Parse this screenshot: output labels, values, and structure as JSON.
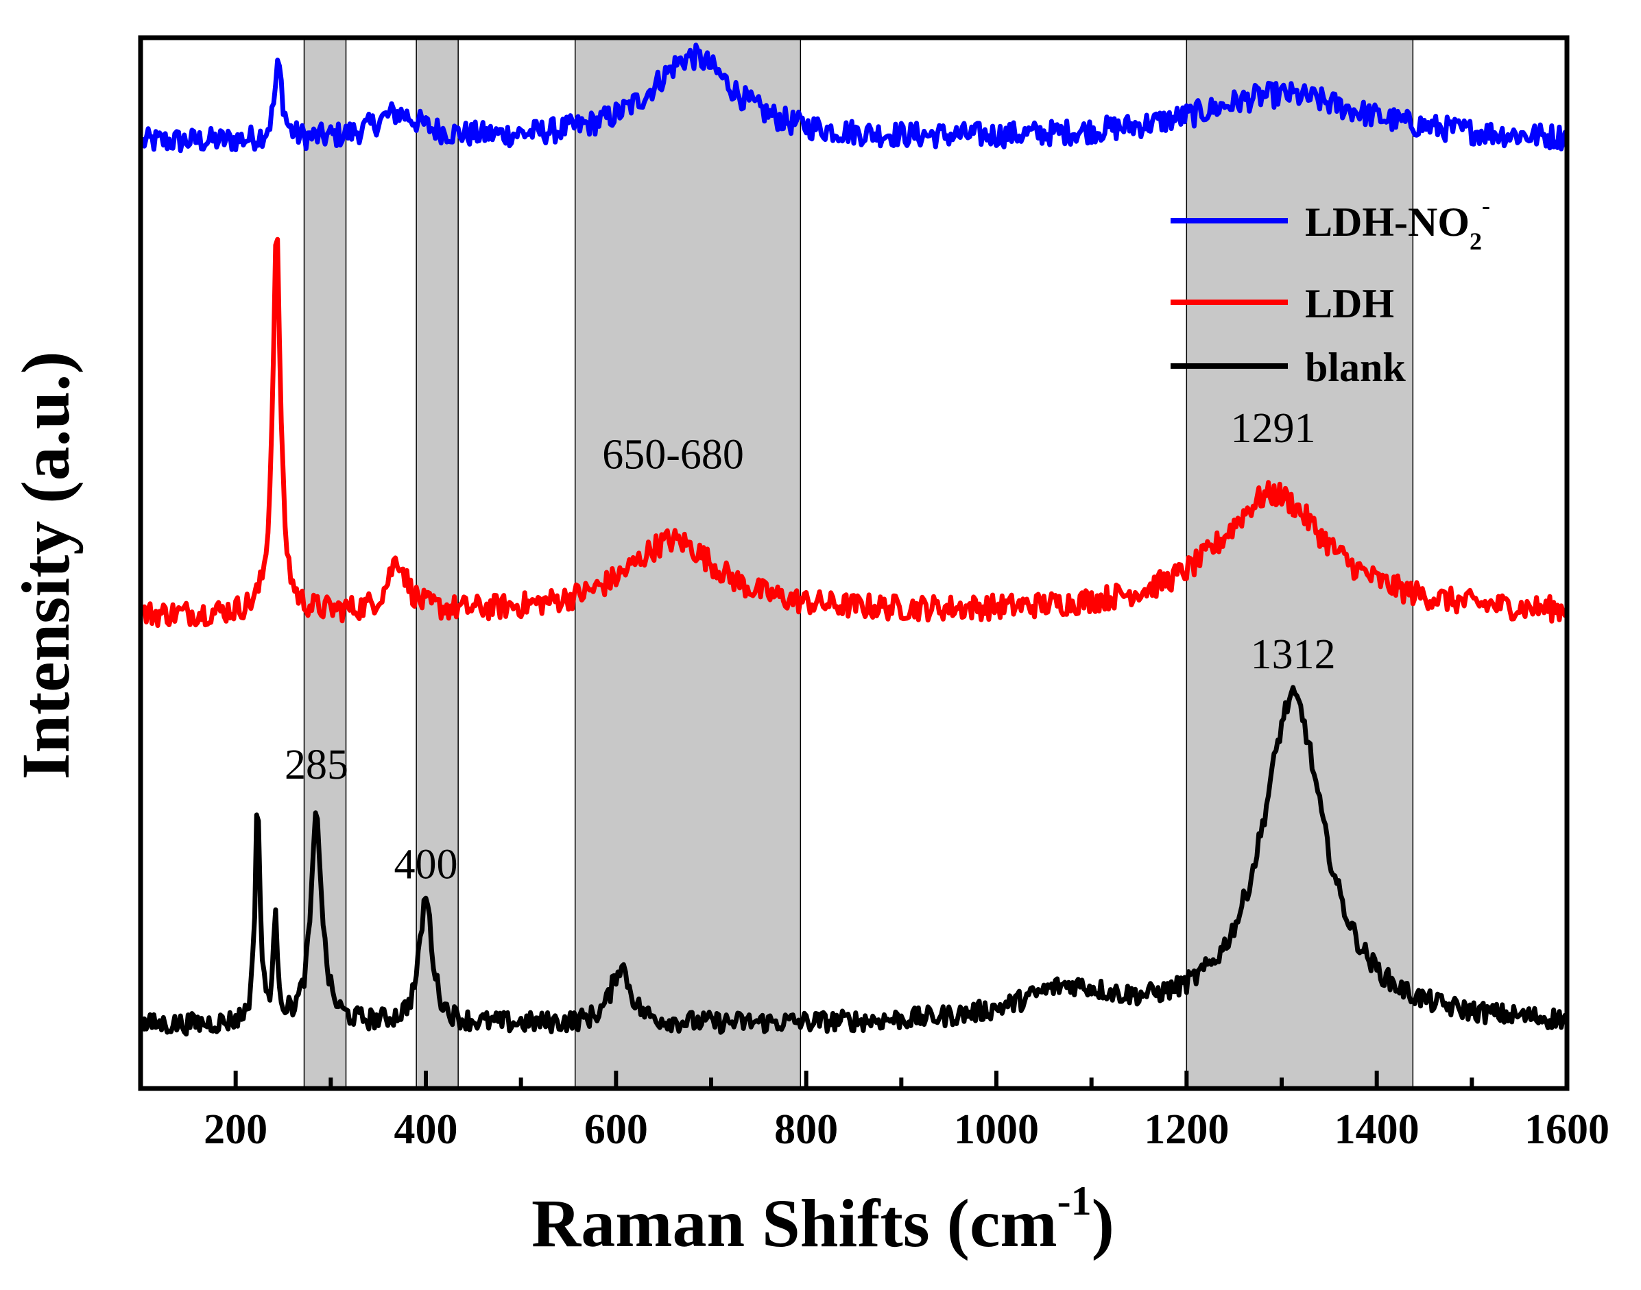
{
  "chart_data": {
    "type": "line",
    "title": "",
    "xlabel": "Raman Shifts (cm",
    "xlabel_sup": "-1",
    "xlabel_close": ")",
    "ylabel": "Intensity (a.u.)",
    "xlim": [
      100,
      1600
    ],
    "ylim": [
      0,
      1
    ],
    "x_ticks": [
      200,
      400,
      600,
      800,
      1000,
      1200,
      1400,
      1600
    ],
    "x_tick_labels": [
      "200",
      "400",
      "600",
      "800",
      "1000",
      "1200",
      "1400",
      "1600"
    ],
    "y_ticks_shown": false,
    "shaded_regions": [
      [
        272,
        316
      ],
      [
        390,
        434
      ],
      [
        557,
        794
      ],
      [
        1200,
        1438
      ]
    ],
    "legend_position": "top-right",
    "series": [
      {
        "name": "LDH-NO",
        "name_sub": "2",
        "name_sup": "-",
        "color": "#0000ff",
        "baseline": 0.9,
        "noise": 0.012,
        "peaks": [
          [
            245,
            0.07,
            5
          ],
          [
            370,
            0.025,
            30
          ],
          [
            680,
            0.08,
            55
          ],
          [
            1300,
            0.045,
            110
          ]
        ]
      },
      {
        "name": "LDH",
        "color": "#ff0000",
        "baseline": 0.45,
        "noise": 0.012,
        "peaks": [
          [
            243,
            0.36,
            5
          ],
          [
            370,
            0.05,
            12
          ],
          [
            660,
            0.07,
            60
          ],
          [
            1291,
            0.115,
            70
          ]
        ]
      },
      {
        "name": "blank",
        "color": "#000000",
        "baseline": 0.06,
        "noise": 0.01,
        "peaks": [
          [
            223,
            0.215,
            3
          ],
          [
            242,
            0.09,
            3
          ],
          [
            285,
            0.195,
            7
          ],
          [
            400,
            0.12,
            8
          ],
          [
            605,
            0.055,
            12
          ],
          [
            1075,
            0.03,
            60
          ],
          [
            1312,
            0.31,
            40
          ]
        ]
      }
    ],
    "annotations": [
      {
        "text": "1291",
        "x": 1291,
        "y": 0.615
      },
      {
        "text": "650-680",
        "x": 660,
        "y": 0.59
      },
      {
        "text": "1312",
        "x": 1312,
        "y": 0.4
      },
      {
        "text": "285",
        "x": 285,
        "y": 0.295
      },
      {
        "text": "400",
        "x": 400,
        "y": 0.2
      }
    ]
  }
}
